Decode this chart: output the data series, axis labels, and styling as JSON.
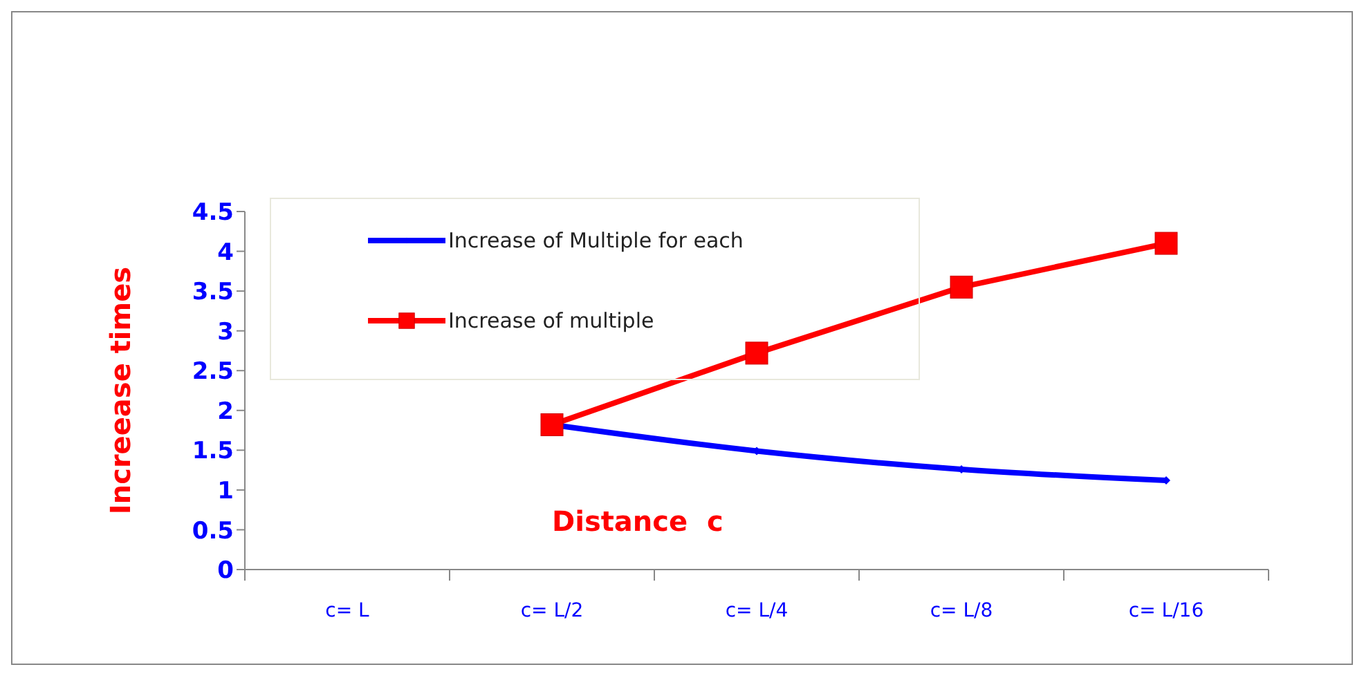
{
  "chart_data": {
    "type": "line",
    "xlabel": "Distance  c",
    "ylabel": "Increease times",
    "categories": [
      "c= L",
      "c= L/2",
      "c= L/4",
      "c= L/8",
      "c= L/16"
    ],
    "series": [
      {
        "name": "Increase of Multiple for each",
        "color": "#0000ff",
        "marker": "diamond",
        "values": [
          null,
          1.82,
          1.49,
          1.26,
          1.12
        ]
      },
      {
        "name": "Increase of multiple",
        "color": "#ff0000",
        "marker": "square",
        "values": [
          null,
          1.82,
          2.72,
          3.55,
          4.1
        ]
      }
    ],
    "ylim": [
      0,
      4.5
    ],
    "yticks": [
      0,
      0.5,
      1,
      1.5,
      2,
      2.5,
      3,
      3.5,
      4,
      4.5
    ],
    "grid": false,
    "legend": "top left"
  }
}
